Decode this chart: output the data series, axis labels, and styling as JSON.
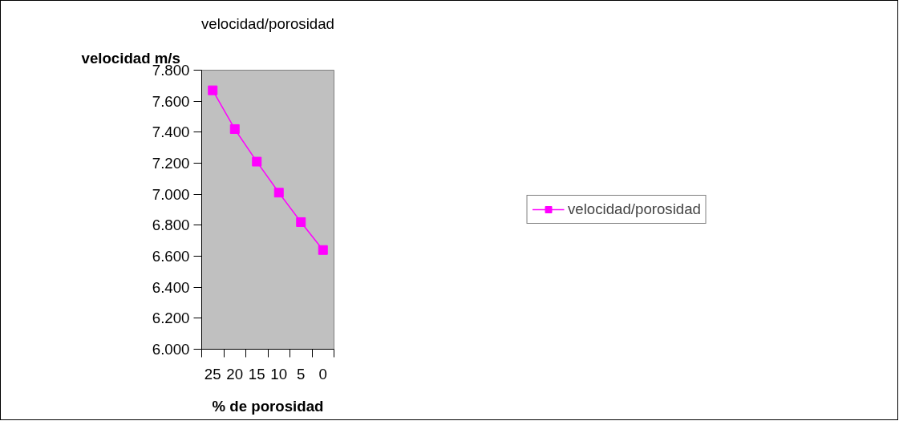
{
  "chart_data": {
    "type": "line",
    "title": "velocidad/porosidad",
    "xlabel": "% de porosidad",
    "ylabel": "velocidad m/s",
    "categories": [
      "25",
      "20",
      "15",
      "10",
      "5",
      "0"
    ],
    "series": [
      {
        "name": "velocidad/porosidad",
        "color": "#ff00ff",
        "values": [
          7670,
          7420,
          7210,
          7010,
          6820,
          6640
        ]
      }
    ],
    "ylim": [
      6000,
      7800
    ],
    "yticks": [
      {
        "value": 6000,
        "label": "6.000"
      },
      {
        "value": 6200,
        "label": "6.200"
      },
      {
        "value": 6400,
        "label": "6.400"
      },
      {
        "value": 6600,
        "label": "6.600"
      },
      {
        "value": 6800,
        "label": "6.800"
      },
      {
        "value": 7000,
        "label": "7.000"
      },
      {
        "value": 7200,
        "label": "7.200"
      },
      {
        "value": 7400,
        "label": "7.400"
      },
      {
        "value": 7600,
        "label": "7.600"
      },
      {
        "value": 7800,
        "label": "7.800"
      }
    ],
    "marker": "square",
    "line_style": "solid",
    "legend": "right",
    "grid": false
  }
}
